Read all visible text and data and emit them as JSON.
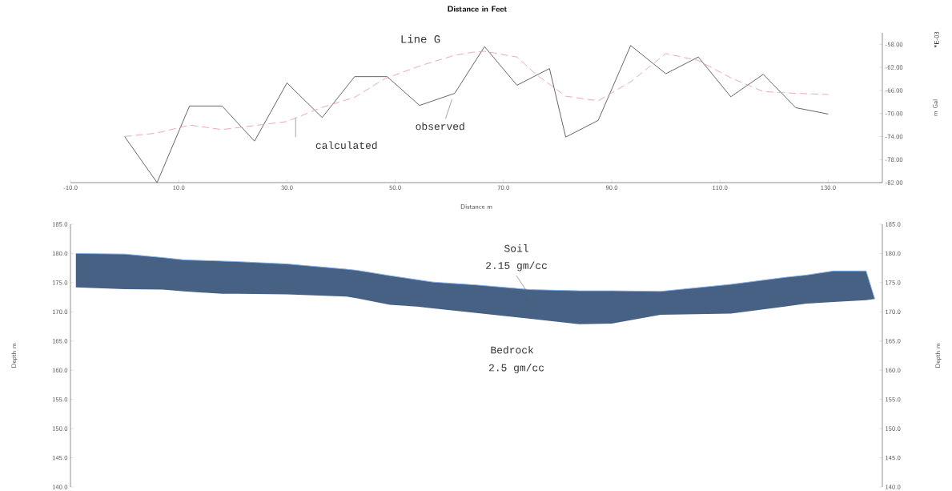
{
  "chart_data": [
    {
      "type": "line",
      "title": "Distance in Feet",
      "subtitle": "Line G",
      "xlabel": "Distance m",
      "ylabel": "m Gal",
      "xlim": [
        -10,
        140
      ],
      "ylim": [
        -82,
        -56
      ],
      "xticks": [
        {
          "value": -10,
          "label": "-10.0"
        },
        {
          "value": 10,
          "label": "10.0"
        },
        {
          "value": 30,
          "label": "30.0"
        },
        {
          "value": 50,
          "label": "50.0"
        },
        {
          "value": 70,
          "label": "70.0"
        },
        {
          "value": 90,
          "label": "90.0"
        },
        {
          "value": 110,
          "label": "110.0"
        },
        {
          "value": 130,
          "label": "130.0"
        }
      ],
      "yticks": [
        {
          "value": -58,
          "label": "-58.00"
        },
        {
          "value": -62,
          "label": "-62.00"
        },
        {
          "value": -66,
          "label": "-66.00"
        },
        {
          "value": -70,
          "label": "-70.00"
        },
        {
          "value": -74,
          "label": "-74.00"
        },
        {
          "value": -78,
          "label": "-78.00"
        },
        {
          "value": -82,
          "label": "-82.00"
        }
      ],
      "series": [
        {
          "color": "#555555",
          "line_style": "solid",
          "x": [
            0,
            6,
            12,
            18,
            24,
            30,
            36.5,
            42.5,
            48.5,
            54.5,
            61,
            66.5,
            72.5,
            78.5,
            81.5,
            87.5,
            93.5,
            100,
            106,
            112,
            118,
            124,
            130
          ],
          "values": [
            -74,
            -82,
            -68.7,
            -68.7,
            -74.8,
            -64.7,
            -70.7,
            -63.6,
            -63.6,
            -68.6,
            -66.5,
            -58.4,
            -65.1,
            -62.2,
            -74.1,
            -71.2,
            -58.2,
            -63.1,
            -60.2,
            -67.1,
            -63.2,
            -69,
            -70.1
          ]
        },
        {
          "color": "#e8a0a8",
          "line_style": "dashed",
          "x": [
            0,
            6,
            12,
            18,
            24,
            30,
            36,
            42.5,
            48,
            55,
            61,
            64,
            66.5,
            72.5,
            76,
            81.5,
            87.5,
            93.5,
            100,
            106,
            112,
            118,
            124,
            130
          ],
          "values": [
            -74,
            -73.4,
            -72,
            -72.8,
            -72.1,
            -71.4,
            -69.1,
            -67.2,
            -64,
            -61.6,
            -59.9,
            -59.4,
            -59.2,
            -60.2,
            -63.2,
            -67,
            -67.8,
            -64.5,
            -59.6,
            -60.8,
            -63.8,
            -66.2,
            -66.5,
            -66.7
          ]
        }
      ],
      "annotations": [
        "observed",
        "calculated",
        "*E-03"
      ]
    },
    {
      "type": "line",
      "ylabel": "Depth m",
      "y2label": "Depth m",
      "tick_labels": "y",
      "xlim": [
        -10,
        140
      ],
      "ylim": [
        140,
        185
      ],
      "y2lim": [
        140,
        185
      ],
      "yticks": [
        {
          "value": 140,
          "label": "140.0"
        },
        {
          "value": 145,
          "label": "145.0"
        },
        {
          "value": 150,
          "label": "150.0"
        },
        {
          "value": 155,
          "label": "155.0"
        },
        {
          "value": 160,
          "label": "160.0"
        },
        {
          "value": 165,
          "label": "165.0"
        },
        {
          "value": 170,
          "label": "170.0"
        },
        {
          "value": 175,
          "label": "175.0"
        },
        {
          "value": 180,
          "label": "180.0"
        },
        {
          "value": 185,
          "label": "185.0"
        }
      ],
      "y2ticks": [
        {
          "value": 140,
          "label": "140.0"
        },
        {
          "value": 145,
          "label": "145.0"
        },
        {
          "value": 150,
          "label": "150.0"
        },
        {
          "value": 155,
          "label": "155.0"
        },
        {
          "value": 160,
          "label": "160.0"
        },
        {
          "value": 165,
          "label": "165.0"
        },
        {
          "value": 170,
          "label": "170.0"
        },
        {
          "value": 175,
          "label": "175.0"
        },
        {
          "value": 180,
          "label": "180.0"
        },
        {
          "value": 185,
          "label": "185.0"
        }
      ],
      "series": [
        {
          "color": "#7fb0f0",
          "x": [
            -9,
            0,
            7,
            11,
            18,
            21,
            30,
            41,
            43,
            49,
            54,
            57,
            65,
            75,
            84,
            90,
            99,
            112,
            122,
            126,
            131,
            137,
            138.6
          ],
          "values": [
            180,
            179.9,
            179.3,
            178.9,
            178.7,
            178.6,
            178.2,
            177.3,
            177.1,
            176.2,
            175.5,
            175.1,
            174.6,
            173.8,
            173.6,
            173.6,
            173.5,
            174.7,
            175.9,
            176.3,
            177,
            177,
            172.2
          ],
          "upper": [
            180,
            179.9,
            179.3,
            178.9,
            178.7,
            178.6,
            178.2,
            177.3,
            177.1,
            176.2,
            175.5,
            175.1,
            174.6,
            173.8,
            173.6,
            173.6,
            173.5,
            174.7,
            175.9,
            176.3,
            177,
            177,
            172.2
          ],
          "lower": [
            174.2,
            173.9,
            173.8,
            173.5,
            173.1,
            173.1,
            173,
            172.6,
            172.3,
            171.2,
            170.9,
            170.6,
            169.8,
            168.8,
            167.9,
            168,
            169.5,
            169.7,
            170.9,
            171.4,
            171.7,
            172,
            172.2
          ]
        }
      ],
      "annotations": [
        "Soil",
        "2.15 gm/cc",
        "Bedrock",
        "2.5 gm/cc"
      ]
    }
  ]
}
